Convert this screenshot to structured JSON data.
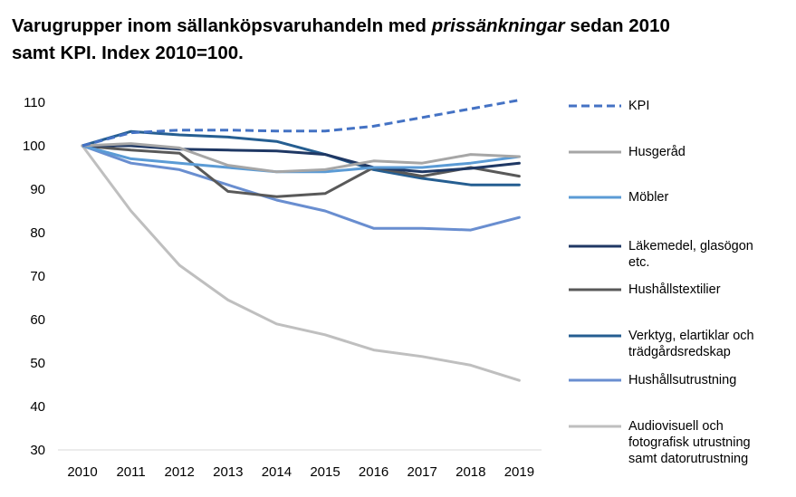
{
  "title": {
    "part1": "Varugrupper inom sällanköpsvaruhandeln med ",
    "italic": "prissänkningar",
    "part2": " sedan 2010",
    "line2": "samt KPI. Index 2010=100."
  },
  "chart_data": {
    "type": "line",
    "categories": [
      "2010",
      "2011",
      "2012",
      "2013",
      "2014",
      "2015",
      "2016",
      "2017",
      "2018",
      "2019"
    ],
    "ylim": [
      30,
      110
    ],
    "yticks": [
      "30",
      "40",
      "50",
      "60",
      "70",
      "80",
      "90",
      "100",
      "110"
    ],
    "grid": false,
    "legend_position": "right",
    "series": [
      {
        "name": "KPI",
        "color": "#4472c4",
        "dashed": true,
        "values": [
          100,
          103,
          103.6,
          103.6,
          103.4,
          103.4,
          104.5,
          106.5,
          108.5,
          110.5
        ]
      },
      {
        "name": "Husgeråd",
        "color": "#a6a6a6",
        "dashed": false,
        "values": [
          100,
          100.5,
          99.5,
          95.5,
          94,
          94.5,
          96.5,
          96,
          98,
          97.5
        ]
      },
      {
        "name": "Möbler",
        "color": "#5b9bd5",
        "dashed": false,
        "values": [
          100,
          97,
          96,
          95,
          94,
          94,
          95,
          95,
          96,
          97.5
        ]
      },
      {
        "name": "Läkemedel, glasögon etc.",
        "color": "#1f3864",
        "dashed": false,
        "values": [
          100,
          100,
          99.2,
          99,
          98.8,
          98,
          95,
          94,
          94.8,
          96
        ]
      },
      {
        "name": "Hushållstextilier",
        "color": "#595959",
        "dashed": false,
        "values": [
          100,
          99,
          98.3,
          89.5,
          88.3,
          89,
          95,
          93,
          95,
          93
        ]
      },
      {
        "name": "Verktyg, elartiklar och trädgårdsredskap",
        "color": "#255e91",
        "dashed": false,
        "values": [
          100,
          103.3,
          102.5,
          102,
          101,
          98,
          94.5,
          92.5,
          91,
          91
        ]
      },
      {
        "name": "Hushållsutrustning",
        "color": "#698ed0",
        "dashed": false,
        "values": [
          100,
          96,
          94.5,
          91,
          87.5,
          85,
          81,
          81,
          80.6,
          83.5
        ]
      },
      {
        "name": "Audiovisuell och fotografisk utrustning samt datorutrustning",
        "color": "#bfbfbf",
        "dashed": false,
        "values": [
          100,
          85,
          72.5,
          64.5,
          59,
          56.5,
          53,
          51.5,
          49.5,
          46
        ]
      }
    ]
  },
  "legend_labels": [
    {
      "lines": [
        "KPI"
      ]
    },
    {
      "lines": [
        "Husgeråd"
      ]
    },
    {
      "lines": [
        "Möbler"
      ]
    },
    {
      "lines": [
        "Läkemedel, glasögon",
        "etc."
      ]
    },
    {
      "lines": [
        "Hushållstextilier"
      ]
    },
    {
      "lines": [
        "Verktyg, elartiklar och",
        "trädgårdsredskap"
      ]
    },
    {
      "lines": [
        "Hushållsutrustning"
      ]
    },
    {
      "lines": [
        "Audiovisuell och",
        "fotografisk utrustning",
        "samt datorutrustning"
      ]
    }
  ]
}
